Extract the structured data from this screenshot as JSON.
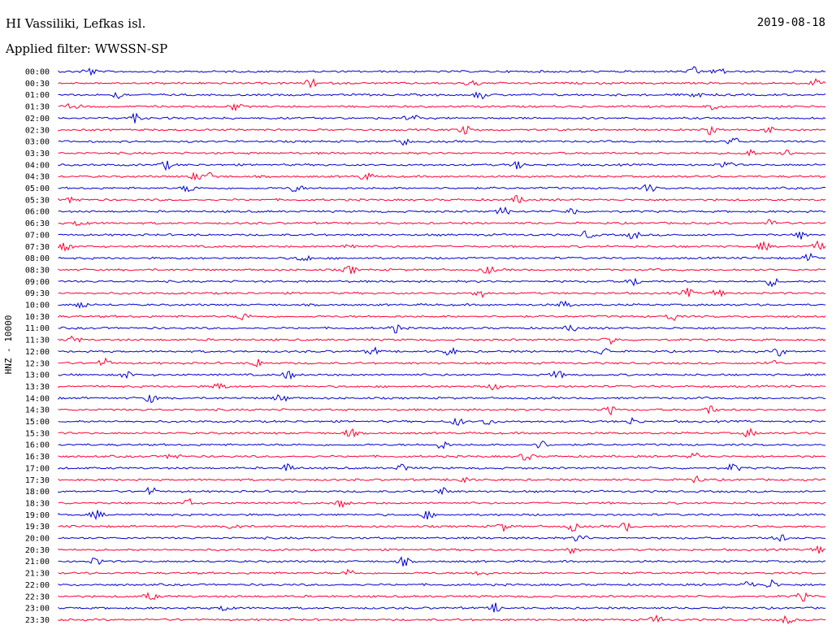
{
  "header": {
    "station": "HI Vassiliki, Lefkas isl.",
    "filter": "Applied filter: WWSSN-SP",
    "date": "2019-08-18"
  },
  "chart_data": {
    "type": "line",
    "title": "HI Vassiliki, Lefkas isl.",
    "subtitle": "Applied filter: WWSSN-SP",
    "date": "2019-08-18",
    "ylabel": "HNZ - 10000",
    "xlabel": "",
    "grid": false,
    "time_labels": [
      "00:00",
      "00:30",
      "01:00",
      "01:30",
      "02:00",
      "02:30",
      "03:00",
      "03:30",
      "04:00",
      "04:30",
      "05:00",
      "05:30",
      "06:00",
      "06:30",
      "07:00",
      "07:30",
      "08:00",
      "08:30",
      "09:00",
      "09:30",
      "10:00",
      "10:30",
      "11:00",
      "11:30",
      "12:00",
      "12:30",
      "13:00",
      "13:30",
      "14:00",
      "14:30",
      "15:00",
      "15:30",
      "16:00",
      "16:30",
      "17:00",
      "17:30",
      "18:00",
      "18:30",
      "19:00",
      "19:30",
      "20:00",
      "20:30",
      "21:00",
      "21:30",
      "22:00",
      "22:30",
      "23:00",
      "23:30"
    ],
    "series_colors": [
      "#0000cc",
      "#ff0033"
    ],
    "event_fractions": [
      [
        0.04,
        0.83,
        0.86
      ],
      [
        0.33,
        0.54,
        0.99
      ],
      [
        0.08,
        0.55,
        0.83
      ],
      [
        0.02,
        0.23,
        0.85
      ],
      [
        0.46,
        0.1
      ],
      [
        0.53,
        0.85,
        0.93
      ],
      [
        0.45,
        0.88
      ],
      [
        0.9,
        0.95
      ],
      [
        0.14,
        0.6,
        0.87
      ],
      [
        0.4,
        0.18,
        0.2
      ],
      [
        0.17,
        0.31,
        0.77
      ],
      [
        0.02,
        0.6
      ],
      [
        0.58,
        0.67
      ],
      [
        0.03,
        0.93
      ],
      [
        0.69,
        0.75,
        0.97
      ],
      [
        0.01,
        0.38,
        0.92,
        0.99
      ],
      [
        0.32,
        0.98
      ],
      [
        0.38,
        0.56
      ],
      [
        0.75,
        0.93
      ],
      [
        0.55,
        0.82,
        0.86
      ],
      [
        0.03,
        0.66
      ],
      [
        0.24,
        0.8
      ],
      [
        0.44,
        0.67
      ],
      [
        0.02,
        0.72
      ],
      [
        0.41,
        0.51,
        0.71,
        0.94
      ],
      [
        0.06,
        0.26,
        0.93
      ],
      [
        0.09,
        0.3,
        0.65
      ],
      [
        0.21,
        0.57
      ],
      [
        0.12,
        0.29
      ],
      [
        0.72,
        0.85
      ],
      [
        0.52,
        0.56,
        0.75
      ],
      [
        0.38,
        0.9
      ],
      [
        0.5,
        0.63
      ],
      [
        0.15,
        0.61,
        0.83
      ],
      [
        0.3,
        0.45,
        0.88
      ],
      [
        0.53,
        0.83
      ],
      [
        0.12,
        0.5
      ],
      [
        0.17,
        0.37
      ],
      [
        0.05,
        0.48
      ],
      [
        0.23,
        0.58,
        0.67,
        0.74
      ],
      [
        0.68,
        0.94
      ],
      [
        0.67,
        0.99
      ],
      [
        0.05,
        0.45
      ],
      [
        0.38,
        0.55
      ],
      [
        0.9,
        0.93
      ],
      [
        0.12,
        0.97
      ],
      [
        0.22,
        0.57
      ],
      [
        0.78,
        0.95
      ]
    ]
  }
}
